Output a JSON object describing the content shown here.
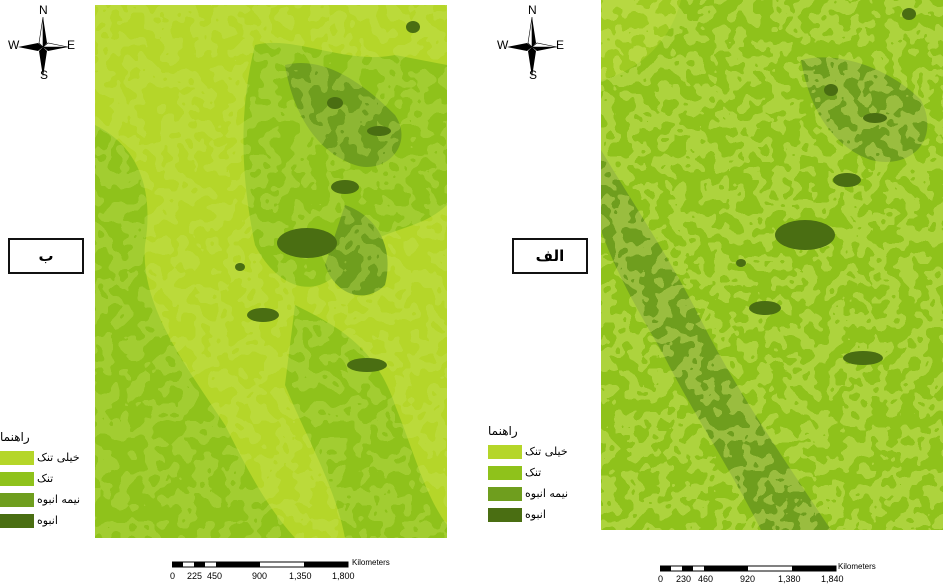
{
  "compass": {
    "north": "N",
    "south": "S",
    "east": "E",
    "west": "W"
  },
  "panels": [
    {
      "id": "b",
      "tag": "ب",
      "legend": {
        "title": "راهنما",
        "items": [
          {
            "label": "خیلی تنک",
            "color": "#b5d629"
          },
          {
            "label": "تنک",
            "color": "#8fc21b"
          },
          {
            "label": "نیمه انبوه",
            "color": "#6f9e1e"
          },
          {
            "label": "انبوه",
            "color": "#4a6e12"
          }
        ]
      },
      "scale": {
        "unit": "Kilometers",
        "ticks": [
          "0",
          "225",
          "450",
          "900",
          "1,350",
          "1,800"
        ]
      }
    },
    {
      "id": "alef",
      "tag": "الف",
      "legend": {
        "title": "راهنما",
        "items": [
          {
            "label": "خیلی تنک",
            "color": "#b5d629"
          },
          {
            "label": "تنک",
            "color": "#8fc21b"
          },
          {
            "label": "نیمه انبوه",
            "color": "#6f9e1e"
          },
          {
            "label": "انبوه",
            "color": "#4a6e12"
          }
        ]
      },
      "scale": {
        "unit": "Kilometers",
        "ticks": [
          "0",
          "230",
          "460",
          "920",
          "1,380",
          "1,840"
        ]
      }
    }
  ],
  "colors": {
    "very_sparse": "#b5d629",
    "sparse": "#8fc21b",
    "semi_dense": "#6f9e1e",
    "dense": "#4a6e12"
  }
}
